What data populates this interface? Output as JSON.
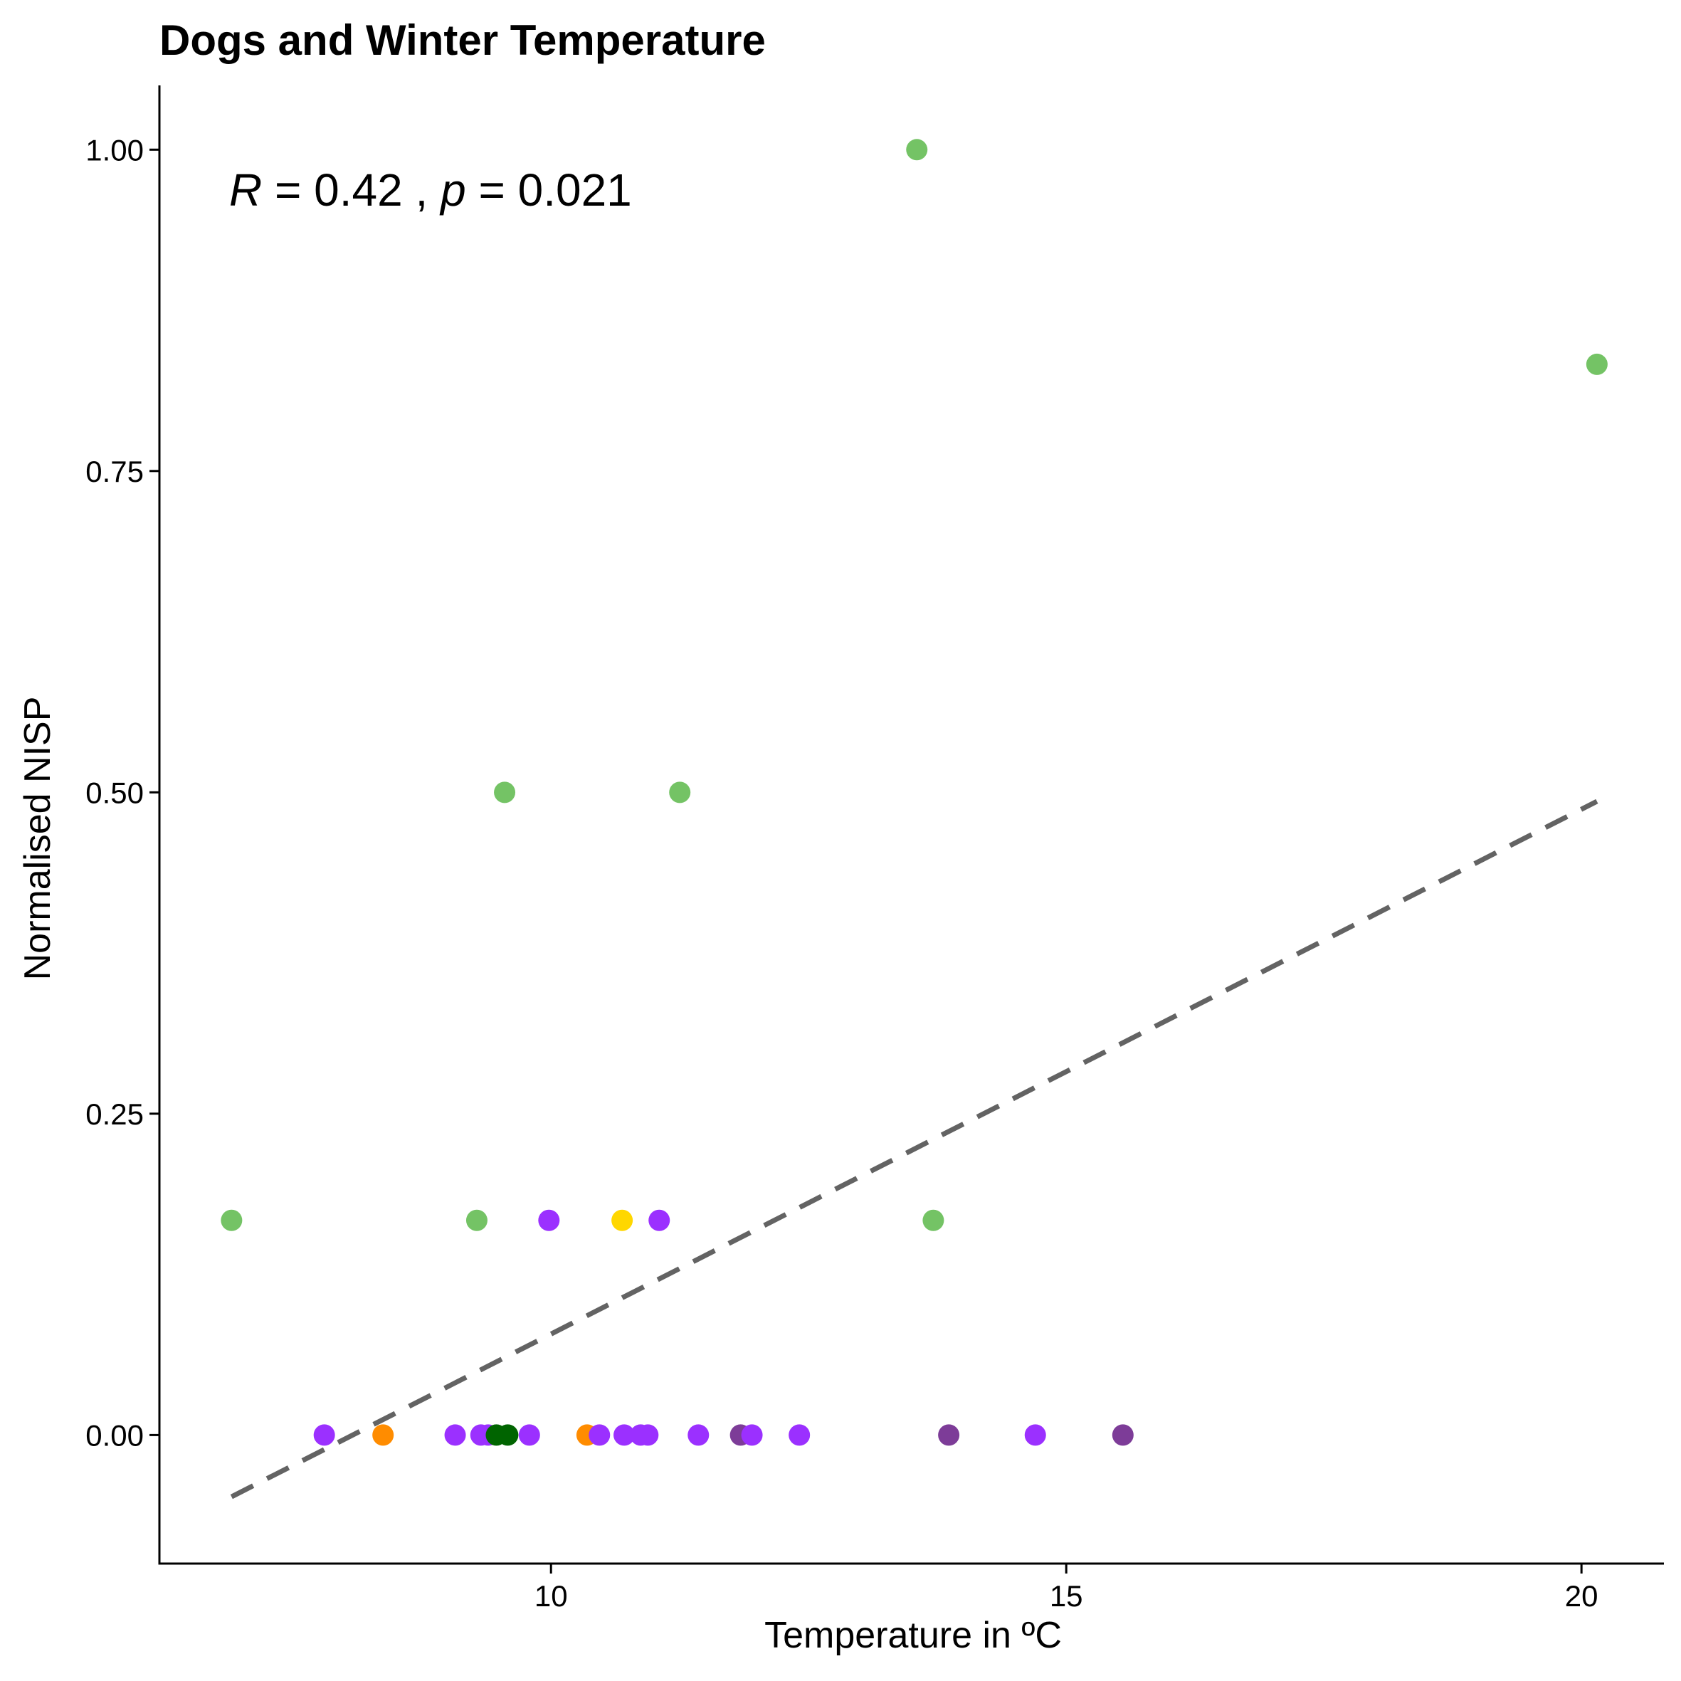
{
  "chart_data": {
    "type": "scatter",
    "title": "Dogs and Winter Temperature",
    "xlabel": "Temperature in ºC",
    "ylabel": "Normalised NISP",
    "xlim": [
      6.2,
      20.8
    ],
    "ylim": [
      -0.1,
      1.05
    ],
    "x_ticks": [
      10,
      15,
      20
    ],
    "x_tick_labels": [
      "10",
      "15",
      "20"
    ],
    "y_ticks": [
      0,
      0.25,
      0.5,
      0.75,
      1.0
    ],
    "y_tick_labels": [
      "0.00",
      "0.25",
      "0.50",
      "0.75",
      "1.00"
    ],
    "grid": false,
    "annotation": {
      "r_symbol": "R",
      "r_text": " = 0.42 , ",
      "p_symbol": "p",
      "p_text": " = 0.021"
    },
    "trendline": {
      "style": "dashed",
      "color": "#636363",
      "x": [
        6.9,
        20.15
      ],
      "y": [
        -0.048,
        0.493
      ]
    },
    "points": [
      {
        "x": 6.9,
        "y": 0.167,
        "color": "#74c365"
      },
      {
        "x": 7.8,
        "y": 0.0,
        "color": "#9b30ff"
      },
      {
        "x": 8.37,
        "y": 0.0,
        "color": "#ff8c00"
      },
      {
        "x": 9.07,
        "y": 0.0,
        "color": "#9b30ff"
      },
      {
        "x": 9.28,
        "y": 0.167,
        "color": "#74c365"
      },
      {
        "x": 9.32,
        "y": 0.0,
        "color": "#9b30ff"
      },
      {
        "x": 9.39,
        "y": 0.0,
        "color": "#9b30ff"
      },
      {
        "x": 9.47,
        "y": 0.0,
        "color": "#006400"
      },
      {
        "x": 9.55,
        "y": 0.5,
        "color": "#74c365"
      },
      {
        "x": 9.58,
        "y": 0.0,
        "color": "#006400"
      },
      {
        "x": 9.79,
        "y": 0.0,
        "color": "#9b30ff"
      },
      {
        "x": 9.98,
        "y": 0.167,
        "color": "#9b30ff"
      },
      {
        "x": 10.35,
        "y": 0.0,
        "color": "#ff8c00"
      },
      {
        "x": 10.47,
        "y": 0.0,
        "color": "#9b30ff"
      },
      {
        "x": 10.69,
        "y": 0.167,
        "color": "#ffd700"
      },
      {
        "x": 10.71,
        "y": 0.0,
        "color": "#9b30ff"
      },
      {
        "x": 10.87,
        "y": 0.0,
        "color": "#9b30ff"
      },
      {
        "x": 10.94,
        "y": 0.0,
        "color": "#9b30ff"
      },
      {
        "x": 11.05,
        "y": 0.167,
        "color": "#9b30ff"
      },
      {
        "x": 11.25,
        "y": 0.5,
        "color": "#74c365"
      },
      {
        "x": 11.43,
        "y": 0.0,
        "color": "#9b30ff"
      },
      {
        "x": 11.84,
        "y": 0.0,
        "color": "#7d3c98"
      },
      {
        "x": 11.95,
        "y": 0.0,
        "color": "#9b30ff"
      },
      {
        "x": 12.41,
        "y": 0.0,
        "color": "#9b30ff"
      },
      {
        "x": 13.55,
        "y": 1.0,
        "color": "#74c365"
      },
      {
        "x": 13.71,
        "y": 0.167,
        "color": "#74c365"
      },
      {
        "x": 13.86,
        "y": 0.0,
        "color": "#7d3c98"
      },
      {
        "x": 14.7,
        "y": 0.0,
        "color": "#9b30ff"
      },
      {
        "x": 15.55,
        "y": 0.0,
        "color": "#7d3c98"
      },
      {
        "x": 20.15,
        "y": 0.833,
        "color": "#74c365"
      }
    ]
  }
}
